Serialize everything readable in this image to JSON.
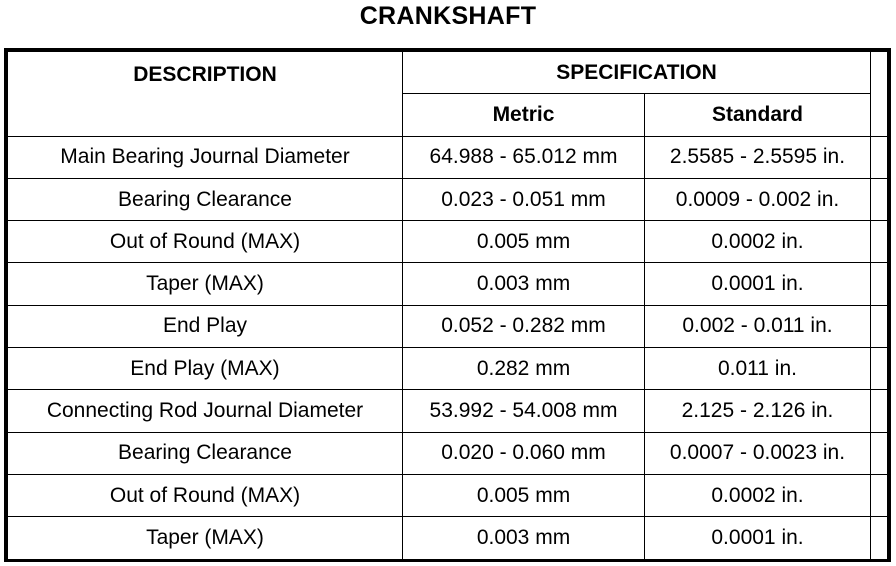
{
  "title": "CRANKSHAFT",
  "headers": {
    "description": "DESCRIPTION",
    "specification": "SPECIFICATION",
    "metric": "Metric",
    "standard": "Standard"
  },
  "rows": [
    {
      "description": "Main Bearing Journal Diameter",
      "metric": "64.988 - 65.012 mm",
      "standard": "2.5585 - 2.5595 in."
    },
    {
      "description": "Bearing Clearance",
      "metric": "0.023 - 0.051 mm",
      "standard": "0.0009 - 0.002 in."
    },
    {
      "description": "Out of Round (MAX)",
      "metric": "0.005 mm",
      "standard": "0.0002 in."
    },
    {
      "description": "Taper (MAX)",
      "metric": "0.003 mm",
      "standard": "0.0001 in."
    },
    {
      "description": "End Play",
      "metric": "0.052 - 0.282 mm",
      "standard": "0.002 - 0.011 in."
    },
    {
      "description": "End Play (MAX)",
      "metric": "0.282 mm",
      "standard": "0.011 in."
    },
    {
      "description": "Connecting Rod Journal Diameter",
      "metric": "53.992 - 54.008 mm",
      "standard": "2.125 - 2.126 in."
    },
    {
      "description": "Bearing Clearance",
      "metric": "0.020 - 0.060 mm",
      "standard": "0.0007 - 0.0023 in."
    },
    {
      "description": "Out of Round (MAX)",
      "metric": "0.005 mm",
      "standard": "0.0002 in."
    },
    {
      "description": "Taper (MAX)",
      "metric": "0.003 mm",
      "standard": "0.0001 in."
    }
  ]
}
